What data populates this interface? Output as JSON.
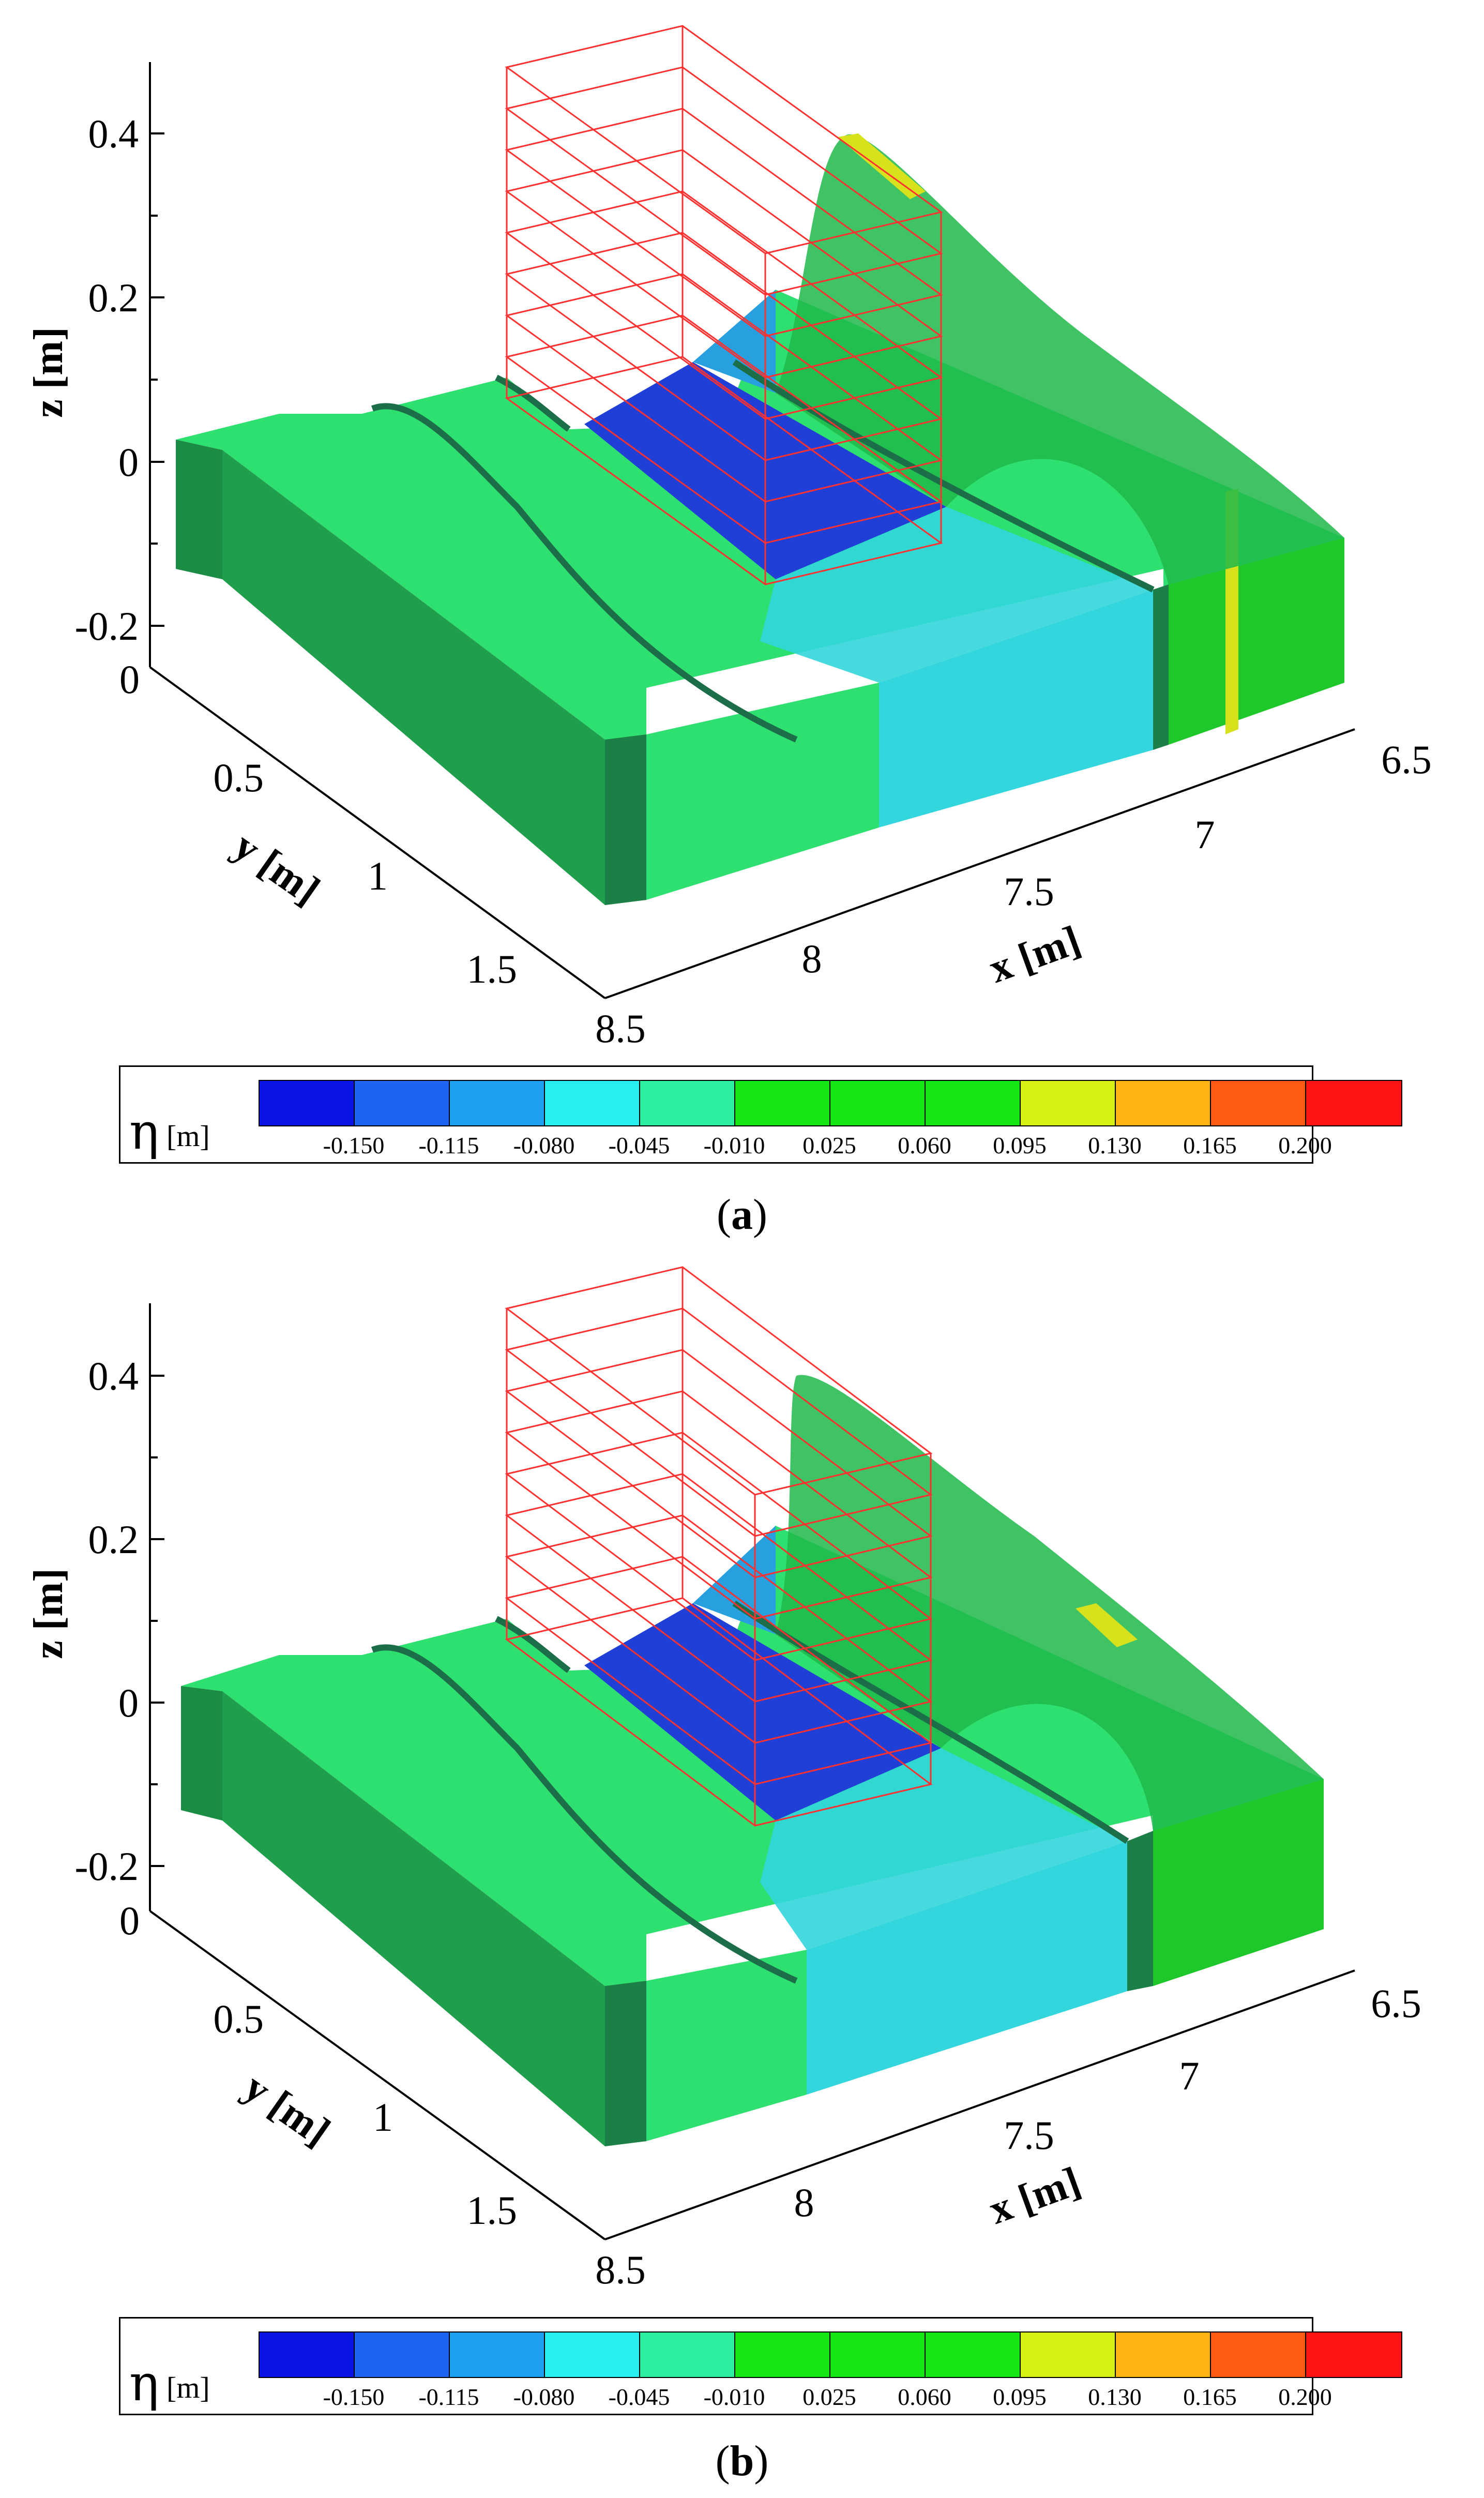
{
  "panels": [
    {
      "id": "a",
      "caption_letter": "a",
      "axes": {
        "z": {
          "title": "z [m]",
          "ticks": [
            "0.4",
            "0.2",
            "0",
            "-0.2"
          ]
        },
        "y": {
          "title": "y [m]",
          "ticks": [
            "0",
            "0.5",
            "1",
            "1.5"
          ]
        },
        "x": {
          "title": "x [m]",
          "ticks": [
            "8.5",
            "8",
            "7.5",
            "7",
            "6.5"
          ]
        }
      }
    },
    {
      "id": "b",
      "caption_letter": "b",
      "axes": {
        "z": {
          "title": "z [m]",
          "ticks": [
            "0.4",
            "0.2",
            "0",
            "-0.2"
          ]
        },
        "y": {
          "title": "y [m]",
          "ticks": [
            "0",
            "0.5",
            "1",
            "1.5"
          ]
        },
        "x": {
          "title": "x [m]",
          "ticks": [
            "8.5",
            "8",
            "7.5",
            "7",
            "6.5"
          ]
        }
      }
    }
  ],
  "legend": {
    "symbol": "η",
    "unit": "[m]",
    "levels": [
      "-0.150",
      "-0.115",
      "-0.080",
      "-0.045",
      "-0.010",
      "0.025",
      "0.060",
      "0.095",
      "0.130",
      "0.165",
      "0.200"
    ],
    "colors": [
      "#0a14e6",
      "#1e64f0",
      "#1ea0f0",
      "#28eef0",
      "#2cf0a0",
      "#14e614",
      "#14e614",
      "#14e614",
      "#d6f014",
      "#ffb414",
      "#ff5a14",
      "#ff1414"
    ]
  },
  "surface_colors": {
    "deep_blue": "#1f3fd6",
    "light_cyan": "#32d6dc",
    "green_top": "#2ee070",
    "green_side": "#1a8c44",
    "green_bright": "#1fc82a",
    "yellow": "#d8e21c",
    "grid_red": "#ff3030"
  }
}
